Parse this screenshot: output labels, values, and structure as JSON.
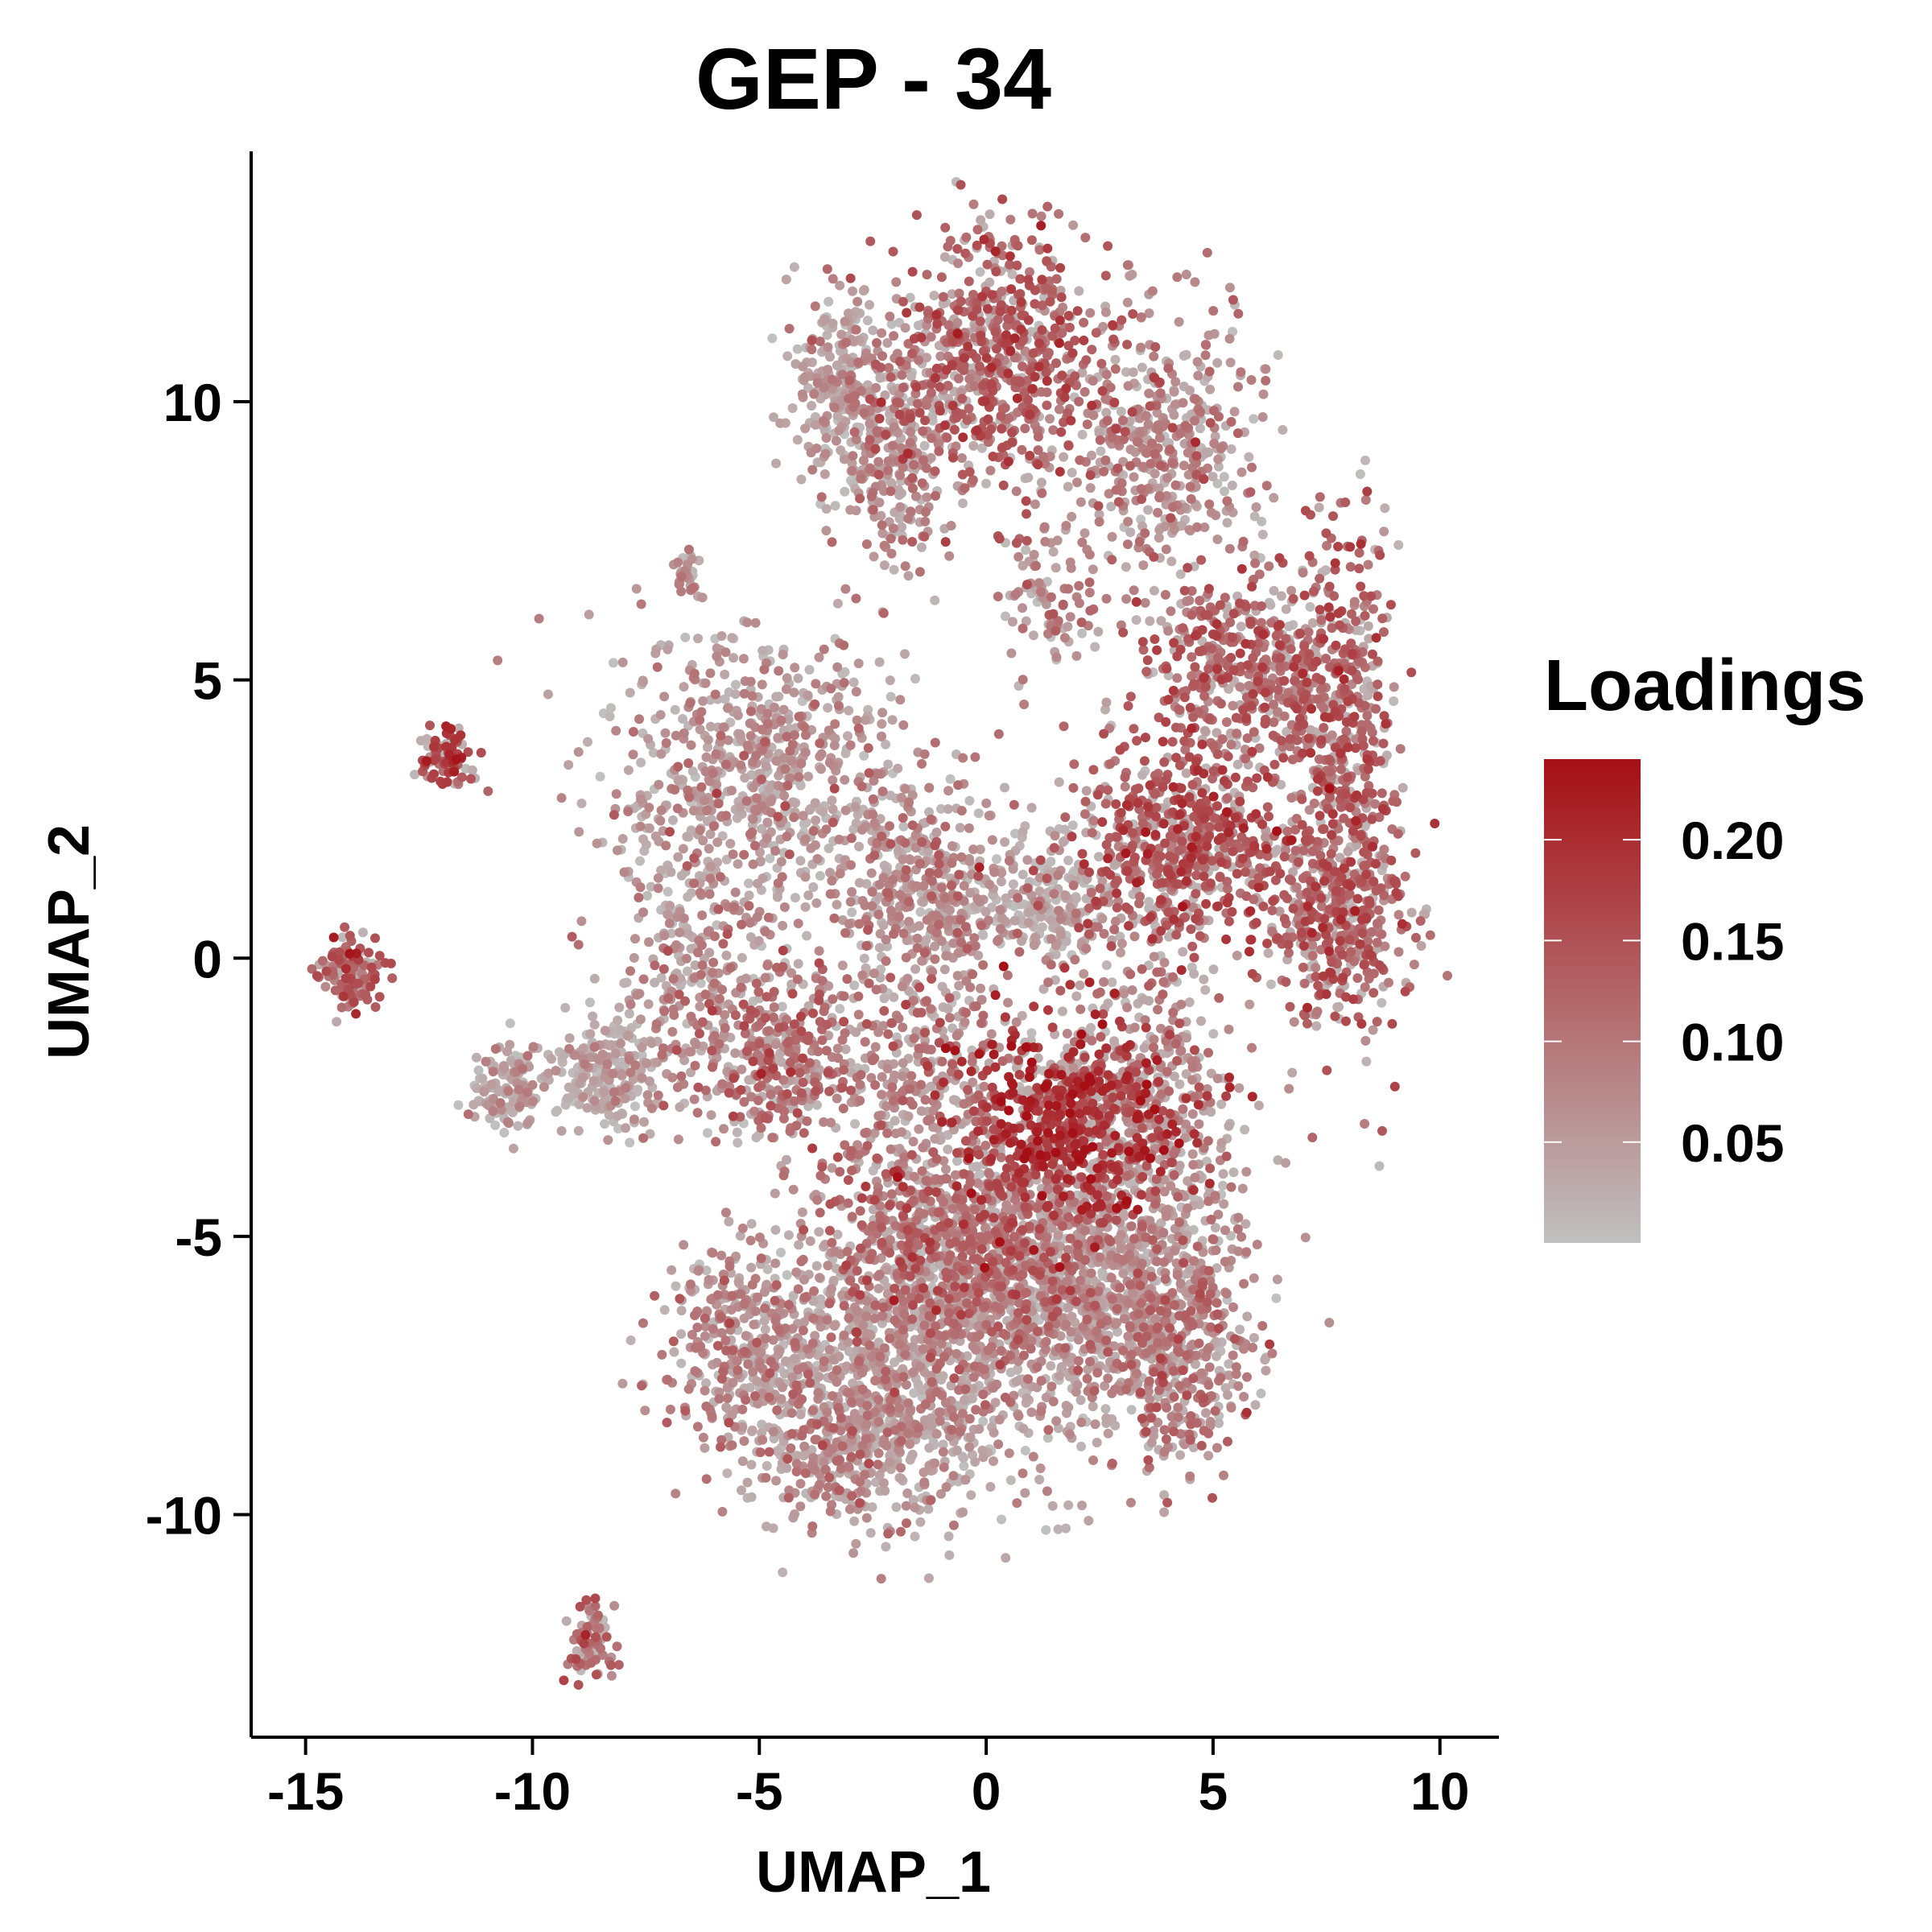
{
  "chart_data": {
    "type": "scatter",
    "title": "GEP  -  34",
    "xlabel": "UMAP_1",
    "ylabel": "UMAP_2",
    "xlim": [
      -16.2,
      11.3
    ],
    "ylim": [
      -14.0,
      14.5
    ],
    "xticks": [
      -15,
      -10,
      -5,
      0,
      5,
      10
    ],
    "yticks": [
      -10,
      -5,
      0,
      5,
      10
    ],
    "xtick_labels": [
      "-15",
      "-10",
      "-5",
      "0",
      "5",
      "10"
    ],
    "ytick_labels": [
      "-10",
      "-5",
      "0",
      "5",
      "10"
    ],
    "grid": false,
    "legend": {
      "title": "Loadings",
      "placement": "right",
      "range": [
        0.0,
        0.24
      ],
      "ticks": [
        0.05,
        0.1,
        0.15,
        0.2
      ],
      "tick_labels": [
        "0.05",
        "0.10",
        "0.15",
        "0.20"
      ],
      "low_color": "#c0c0c0",
      "high_color": "#a50f15"
    },
    "clusters": [
      {
        "cx": -14.0,
        "cy": -0.3,
        "sx": 0.35,
        "sy": 0.35,
        "n": 120,
        "loading": 0.14
      },
      {
        "cx": -11.9,
        "cy": 3.6,
        "sx": 0.3,
        "sy": 0.25,
        "n": 90,
        "loading": 0.16
      },
      {
        "cx": -10.6,
        "cy": -2.3,
        "sx": 0.35,
        "sy": 0.4,
        "n": 120,
        "loading": 0.05
      },
      {
        "cx": -8.5,
        "cy": -2.1,
        "sx": 0.7,
        "sy": 0.45,
        "n": 220,
        "loading": 0.03
      },
      {
        "cx": -8.7,
        "cy": -12.2,
        "sx": 0.25,
        "sy": 0.4,
        "n": 70,
        "loading": 0.1
      },
      {
        "cx": -6.6,
        "cy": 6.9,
        "sx": 0.15,
        "sy": 0.2,
        "n": 30,
        "loading": 0.06
      },
      {
        "cx": -5.0,
        "cy": 3.3,
        "sx": 1.6,
        "sy": 1.3,
        "n": 700,
        "loading": 0.06
      },
      {
        "cx": -6.5,
        "cy": 0.0,
        "sx": 0.8,
        "sy": 1.4,
        "n": 260,
        "loading": 0.07
      },
      {
        "cx": -4.5,
        "cy": -1.8,
        "sx": 0.9,
        "sy": 0.8,
        "n": 350,
        "loading": 0.11
      },
      {
        "cx": -3.2,
        "cy": 10.3,
        "sx": 0.55,
        "sy": 0.8,
        "n": 250,
        "loading": 0.05
      },
      {
        "cx": -2.0,
        "cy": 9.0,
        "sx": 0.7,
        "sy": 1.0,
        "n": 300,
        "loading": 0.07
      },
      {
        "cx": 0.2,
        "cy": 10.8,
        "sx": 1.1,
        "sy": 1.2,
        "n": 650,
        "loading": 0.13
      },
      {
        "cx": 3.8,
        "cy": 9.3,
        "sx": 1.1,
        "sy": 1.2,
        "n": 450,
        "loading": 0.08
      },
      {
        "cx": 1.4,
        "cy": 6.5,
        "sx": 0.5,
        "sy": 0.7,
        "n": 90,
        "loading": 0.08
      },
      {
        "cx": 5.6,
        "cy": 5.2,
        "sx": 1.1,
        "sy": 0.9,
        "n": 450,
        "loading": 0.12
      },
      {
        "cx": 7.8,
        "cy": 3.5,
        "sx": 0.6,
        "sy": 2.2,
        "n": 550,
        "loading": 0.13
      },
      {
        "cx": 4.2,
        "cy": 2.0,
        "sx": 1.3,
        "sy": 0.9,
        "n": 650,
        "loading": 0.14
      },
      {
        "cx": 7.8,
        "cy": 0.7,
        "sx": 0.9,
        "sy": 0.8,
        "n": 300,
        "loading": 0.12
      },
      {
        "cx": -1.6,
        "cy": 1.3,
        "sx": 0.9,
        "sy": 0.9,
        "n": 350,
        "loading": 0.07
      },
      {
        "cx": 1.0,
        "cy": 1.0,
        "sx": 1.2,
        "sy": 0.6,
        "n": 250,
        "loading": 0.03
      },
      {
        "cx": -1.3,
        "cy": -1.8,
        "sx": 1.0,
        "sy": 1.4,
        "n": 350,
        "loading": 0.08
      },
      {
        "cx": 1.8,
        "cy": -2.9,
        "sx": 1.3,
        "sy": 0.9,
        "n": 600,
        "loading": 0.19
      },
      {
        "cx": 3.5,
        "cy": -2.5,
        "sx": 1.0,
        "sy": 1.3,
        "n": 400,
        "loading": 0.08
      },
      {
        "cx": -0.5,
        "cy": -5.2,
        "sx": 1.6,
        "sy": 1.1,
        "n": 900,
        "loading": 0.11
      },
      {
        "cx": 2.3,
        "cy": -6.0,
        "sx": 1.6,
        "sy": 1.4,
        "n": 1000,
        "loading": 0.06
      },
      {
        "cx": -2.0,
        "cy": -7.5,
        "sx": 1.5,
        "sy": 1.2,
        "n": 900,
        "loading": 0.05
      },
      {
        "cx": -5.3,
        "cy": -6.9,
        "sx": 0.9,
        "sy": 0.9,
        "n": 350,
        "loading": 0.08
      },
      {
        "cx": 4.3,
        "cy": -7.0,
        "sx": 0.8,
        "sy": 1.1,
        "n": 350,
        "loading": 0.1
      },
      {
        "cx": -3.4,
        "cy": -9.0,
        "sx": 0.8,
        "sy": 0.6,
        "n": 200,
        "loading": 0.08
      }
    ]
  }
}
